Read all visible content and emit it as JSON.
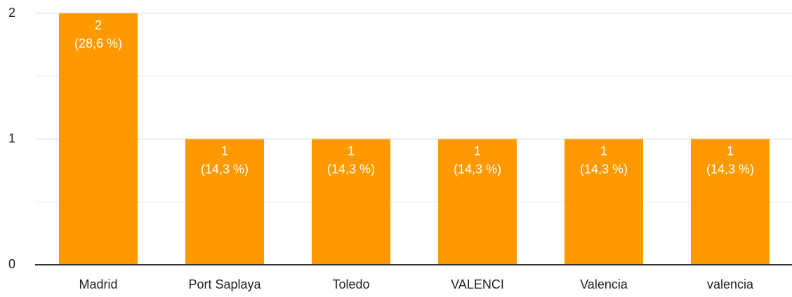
{
  "chart_data": {
    "type": "bar",
    "categories": [
      "Madrid",
      "Port Saplaya",
      "Toledo",
      "VALENCI",
      "Valencia",
      "valencia"
    ],
    "values": [
      2,
      1,
      1,
      1,
      1,
      1
    ],
    "percent_labels": [
      "(28,6 %)",
      "(14,3 %)",
      "(14,3 %)",
      "(14,3 %)",
      "(14,3 %)",
      "(14,3 %)"
    ],
    "color": "#ff9900",
    "ylim": [
      0,
      2
    ],
    "yticks": [
      0,
      1,
      2
    ],
    "minor_yticks": [
      0.5,
      1.5
    ],
    "grid": true
  }
}
